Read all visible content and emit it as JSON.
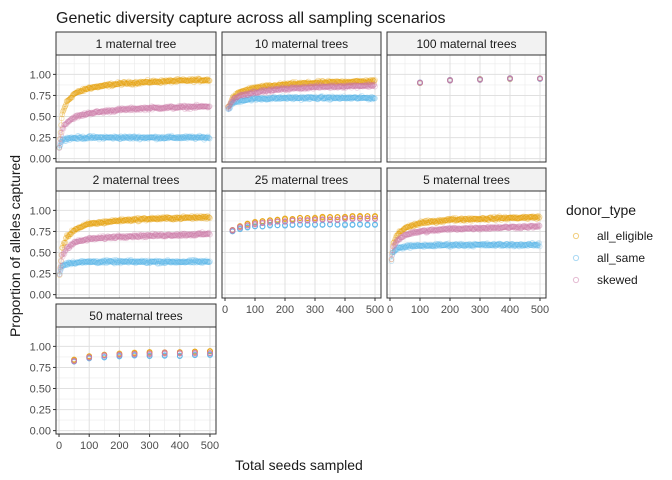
{
  "chart_data": {
    "type": "scatter",
    "title": "Genetic diversity capture across all sampling scenarios",
    "xlabel": "Total seeds sampled",
    "ylabel": "Proportion of alleles captured",
    "xlim": [
      -10,
      520
    ],
    "ylim": [
      -0.04,
      1.23
    ],
    "x_ticks": [
      0,
      100,
      200,
      300,
      400,
      500
    ],
    "y_ticks": [
      0.0,
      0.25,
      0.5,
      0.75,
      1.0
    ],
    "y_tick_labels": [
      "0.00",
      "0.25",
      "0.50",
      "0.75",
      "1.00"
    ],
    "legend": {
      "title": "donor_type",
      "position": "right",
      "entries": [
        {
          "name": "all_eligible",
          "color": "#E69F00"
        },
        {
          "name": "all_same",
          "color": "#56B4E9"
        },
        {
          "name": "skewed",
          "color": "#CC79A7"
        }
      ]
    },
    "grid": true,
    "panels": [
      {
        "label": "1 maternal tree",
        "style": "continuous",
        "x_start": 1,
        "x_end": 500,
        "series": [
          {
            "name": "all_eligible",
            "x": [
              1,
              10,
              25,
              50,
              100,
              200,
              300,
              400,
              500
            ],
            "y": [
              0.13,
              0.52,
              0.67,
              0.77,
              0.84,
              0.89,
              0.91,
              0.925,
              0.935
            ]
          },
          {
            "name": "all_same",
            "x": [
              1,
              10,
              25,
              50,
              100,
              200,
              300,
              400,
              500
            ],
            "y": [
              0.13,
              0.22,
              0.24,
              0.245,
              0.25,
              0.25,
              0.25,
              0.25,
              0.25
            ]
          },
          {
            "name": "skewed",
            "x": [
              1,
              10,
              25,
              50,
              100,
              200,
              300,
              400,
              500
            ],
            "y": [
              0.13,
              0.35,
              0.43,
              0.49,
              0.54,
              0.58,
              0.6,
              0.61,
              0.62
            ]
          }
        ]
      },
      {
        "label": "10 maternal trees",
        "style": "continuous",
        "x_start": 10,
        "x_end": 500,
        "series": [
          {
            "name": "all_eligible",
            "x": [
              10,
              25,
              50,
              100,
              200,
              300,
              400,
              500
            ],
            "y": [
              0.6,
              0.72,
              0.79,
              0.84,
              0.88,
              0.9,
              0.91,
              0.92
            ]
          },
          {
            "name": "all_same",
            "x": [
              10,
              25,
              50,
              100,
              200,
              300,
              400,
              500
            ],
            "y": [
              0.58,
              0.66,
              0.69,
              0.71,
              0.72,
              0.72,
              0.72,
              0.72
            ]
          },
          {
            "name": "skewed",
            "x": [
              10,
              25,
              50,
              100,
              200,
              300,
              400,
              500
            ],
            "y": [
              0.59,
              0.7,
              0.75,
              0.79,
              0.83,
              0.85,
              0.86,
              0.87
            ]
          }
        ]
      },
      {
        "label": "100 maternal trees",
        "style": "discrete",
        "x": [
          100,
          200,
          300,
          400,
          500
        ],
        "series": [
          {
            "name": "all_eligible",
            "y": [
              0.9,
              0.93,
              0.94,
              0.95,
              0.95
            ]
          },
          {
            "name": "all_same",
            "y": [
              0.9,
              0.93,
              0.94,
              0.95,
              0.95
            ]
          },
          {
            "name": "skewed",
            "y": [
              0.9,
              0.93,
              0.94,
              0.95,
              0.95
            ]
          }
        ]
      },
      {
        "label": "2 maternal trees",
        "style": "continuous",
        "x_start": 2,
        "x_end": 500,
        "series": [
          {
            "name": "all_eligible",
            "x": [
              2,
              10,
              25,
              50,
              100,
              200,
              300,
              400,
              500
            ],
            "y": [
              0.25,
              0.55,
              0.68,
              0.77,
              0.84,
              0.88,
              0.9,
              0.91,
              0.92
            ]
          },
          {
            "name": "all_same",
            "x": [
              2,
              10,
              25,
              50,
              100,
              200,
              300,
              400,
              500
            ],
            "y": [
              0.25,
              0.34,
              0.37,
              0.38,
              0.39,
              0.39,
              0.39,
              0.39,
              0.39
            ]
          },
          {
            "name": "skewed",
            "x": [
              2,
              10,
              25,
              50,
              100,
              200,
              300,
              400,
              500
            ],
            "y": [
              0.25,
              0.45,
              0.55,
              0.62,
              0.66,
              0.69,
              0.7,
              0.71,
              0.72
            ]
          }
        ]
      },
      {
        "label": "25 maternal trees",
        "style": "discrete",
        "x": [
          25,
          50,
          75,
          100,
          125,
          150,
          175,
          200,
          225,
          250,
          275,
          300,
          325,
          350,
          375,
          400,
          425,
          450,
          475,
          500
        ],
        "series": [
          {
            "name": "all_eligible",
            "y": [
              0.77,
              0.81,
              0.84,
              0.86,
              0.87,
              0.88,
              0.89,
              0.9,
              0.9,
              0.91,
              0.91,
              0.91,
              0.92,
              0.92,
              0.92,
              0.92,
              0.93,
              0.93,
              0.93,
              0.93
            ]
          },
          {
            "name": "all_same",
            "y": [
              0.75,
              0.78,
              0.8,
              0.81,
              0.81,
              0.82,
              0.82,
              0.82,
              0.83,
              0.83,
              0.83,
              0.83,
              0.83,
              0.83,
              0.83,
              0.83,
              0.83,
              0.83,
              0.83,
              0.83
            ]
          },
          {
            "name": "skewed",
            "y": [
              0.76,
              0.8,
              0.82,
              0.84,
              0.85,
              0.86,
              0.87,
              0.87,
              0.88,
              0.88,
              0.88,
              0.89,
              0.89,
              0.89,
              0.89,
              0.9,
              0.9,
              0.9,
              0.9,
              0.9
            ]
          }
        ]
      },
      {
        "label": "5 maternal trees",
        "style": "continuous",
        "x_start": 5,
        "x_end": 500,
        "series": [
          {
            "name": "all_eligible",
            "x": [
              5,
              10,
              25,
              50,
              100,
              200,
              300,
              400,
              500
            ],
            "y": [
              0.42,
              0.6,
              0.72,
              0.79,
              0.85,
              0.89,
              0.9,
              0.91,
              0.92
            ]
          },
          {
            "name": "all_same",
            "x": [
              5,
              10,
              25,
              50,
              100,
              200,
              300,
              400,
              500
            ],
            "y": [
              0.42,
              0.5,
              0.55,
              0.57,
              0.58,
              0.59,
              0.59,
              0.59,
              0.59
            ]
          },
          {
            "name": "skewed",
            "x": [
              5,
              10,
              25,
              50,
              100,
              200,
              300,
              400,
              500
            ],
            "y": [
              0.42,
              0.56,
              0.65,
              0.71,
              0.75,
              0.78,
              0.79,
              0.8,
              0.81
            ]
          }
        ]
      },
      {
        "label": "50 maternal trees",
        "style": "discrete",
        "x": [
          50,
          100,
          150,
          200,
          250,
          300,
          350,
          400,
          450,
          500
        ],
        "series": [
          {
            "name": "all_eligible",
            "y": [
              0.84,
              0.88,
              0.9,
              0.91,
              0.92,
              0.93,
              0.93,
              0.93,
              0.94,
              0.94
            ]
          },
          {
            "name": "all_same",
            "y": [
              0.82,
              0.86,
              0.87,
              0.88,
              0.89,
              0.89,
              0.89,
              0.89,
              0.9,
              0.9
            ]
          },
          {
            "name": "skewed",
            "y": [
              0.83,
              0.87,
              0.89,
              0.9,
              0.91,
              0.91,
              0.92,
              0.92,
              0.92,
              0.92
            ]
          }
        ]
      }
    ]
  }
}
